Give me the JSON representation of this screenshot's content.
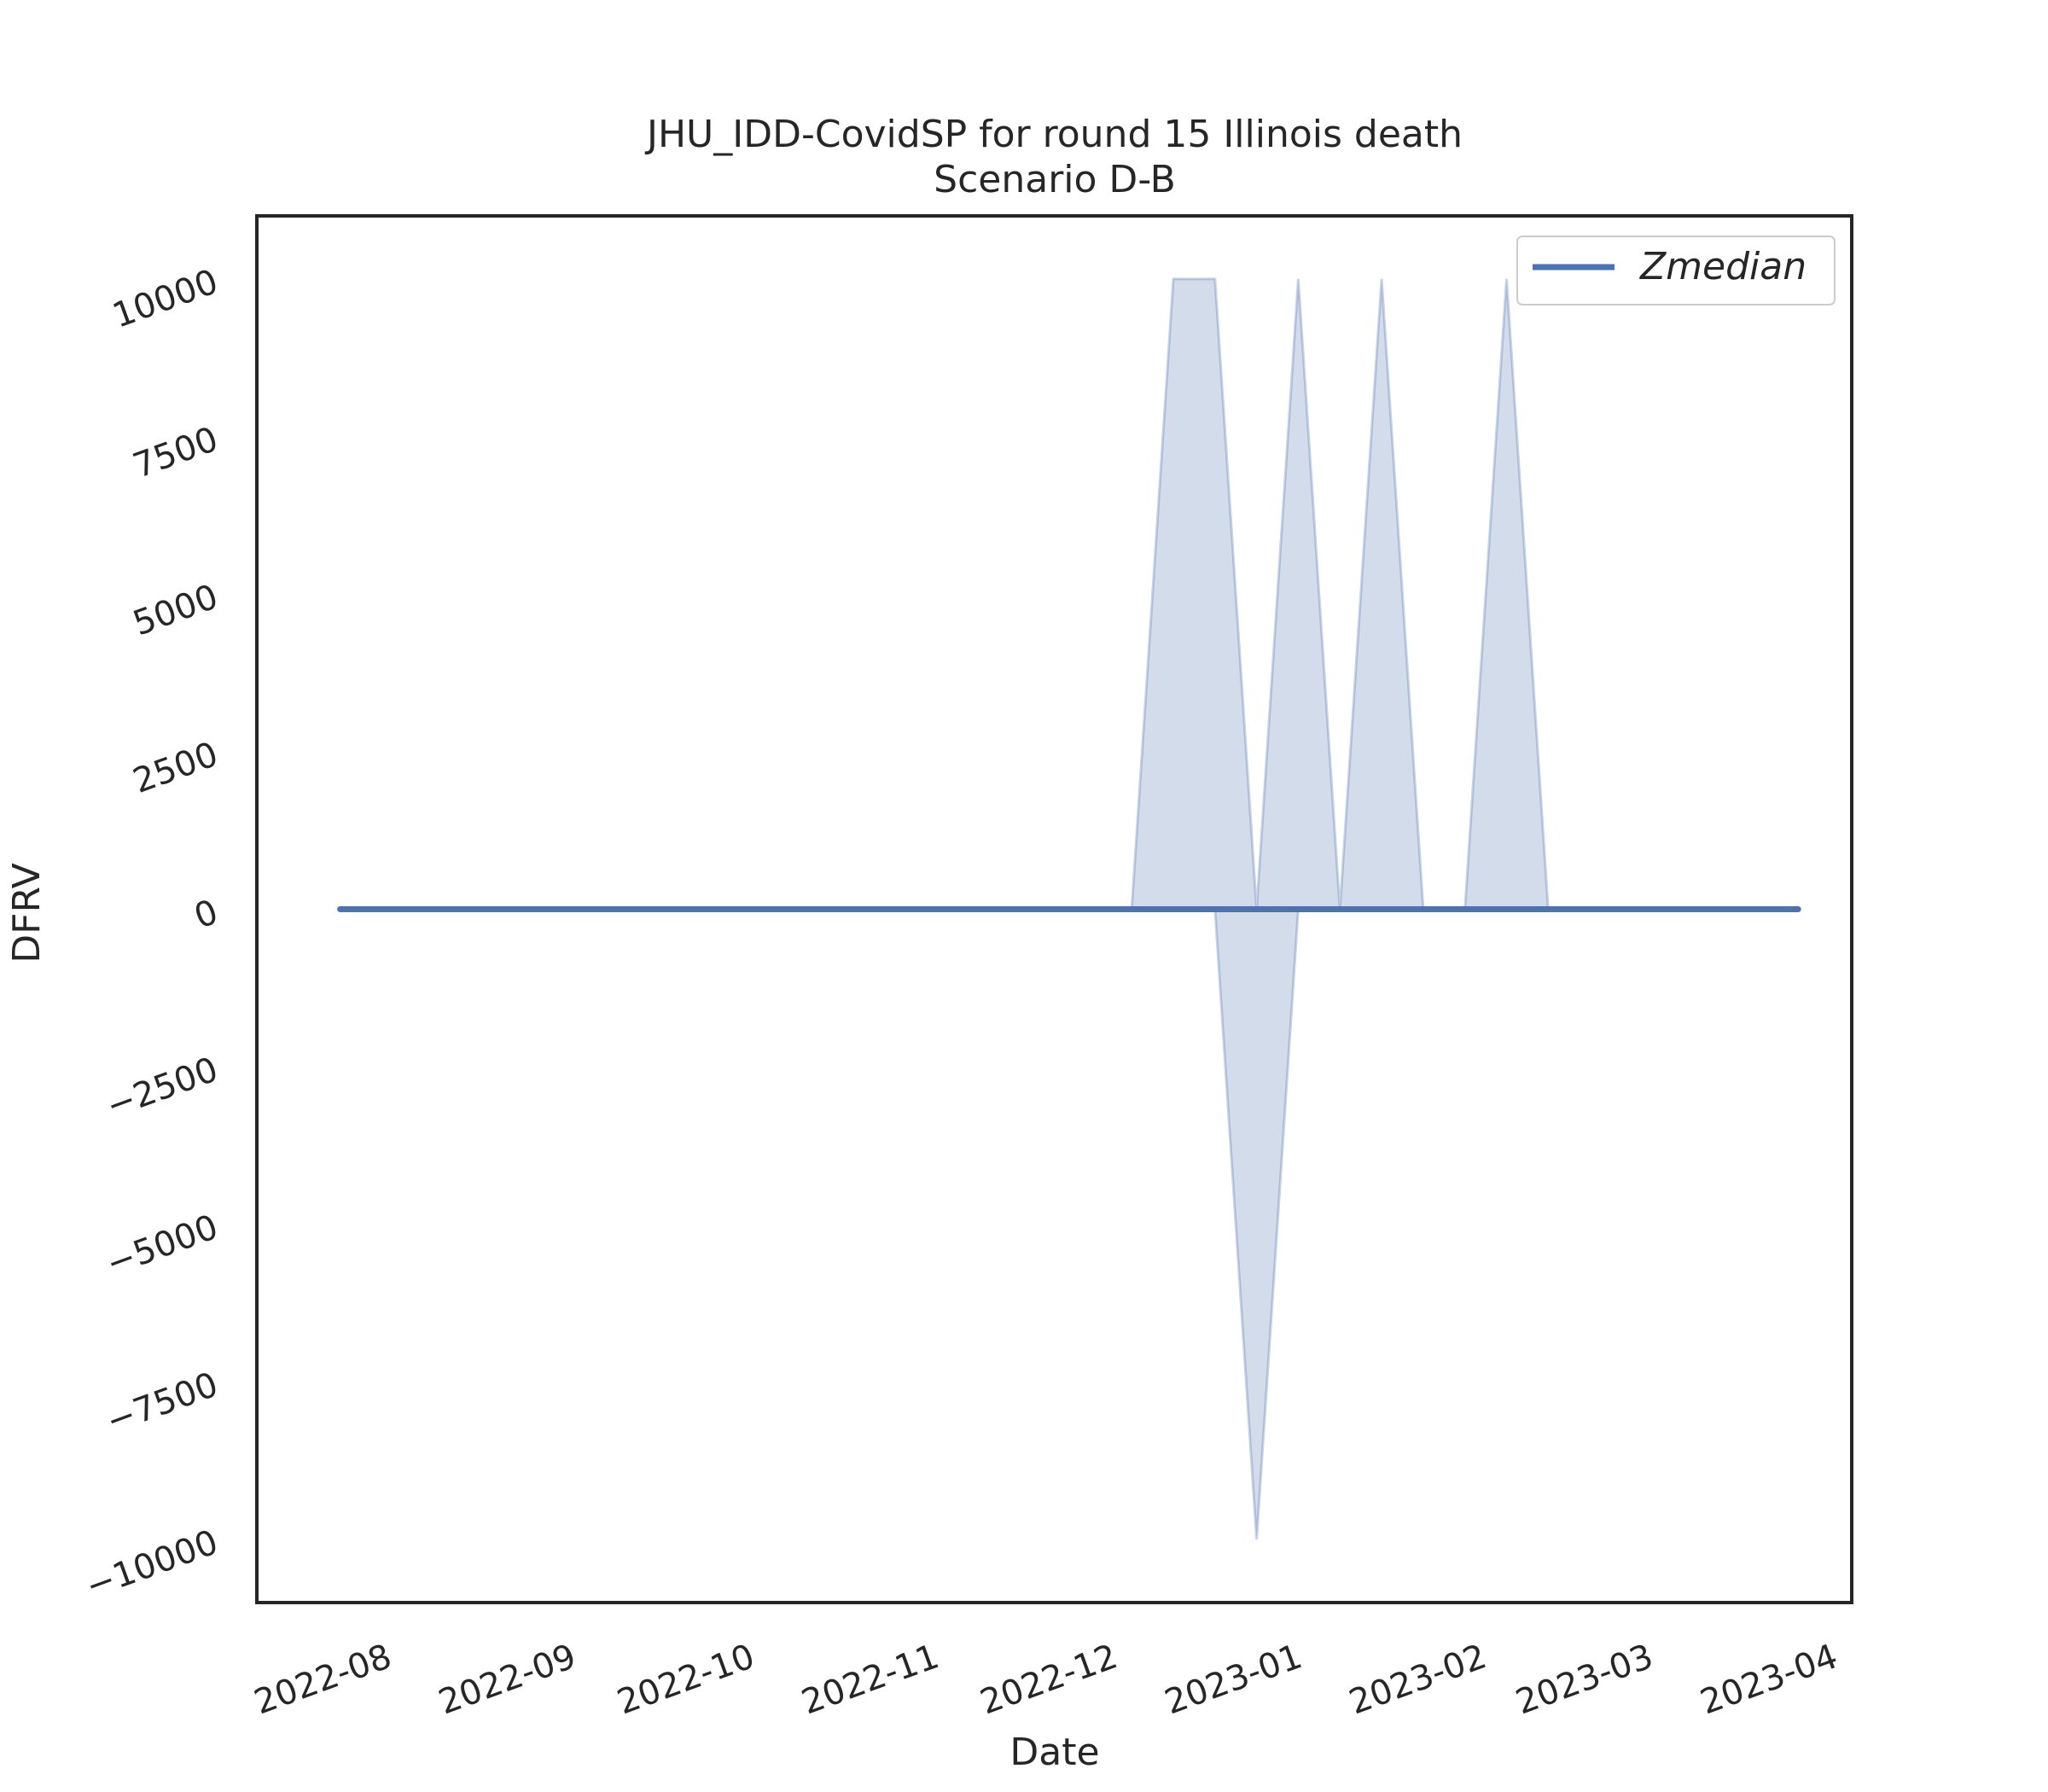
{
  "chart_data": {
    "type": "line",
    "title": "JHU_IDD-CovidSP for round 15 Illinois death",
    "subtitle": "Scenario D-B",
    "xlabel": "Date",
    "ylabel": "DFRV",
    "x_type": "date",
    "xlim": [
      "2022-07-09",
      "2023-04-03"
    ],
    "ylim": [
      -11000,
      11000
    ],
    "x_ticks": [
      "2022-08",
      "2022-09",
      "2022-10",
      "2022-11",
      "2022-12",
      "2023-01",
      "2023-02",
      "2023-03",
      "2023-04"
    ],
    "y_ticks": [
      -10000,
      -7500,
      -5000,
      -2500,
      0,
      2500,
      5000,
      7500,
      10000
    ],
    "grid": false,
    "legend_position": "top-right",
    "series": [
      {
        "name": "Zmedian",
        "color": "#4c72b0",
        "x": [
          "2022-07-23",
          "2023-03-25"
        ],
        "y": [
          0,
          0
        ]
      }
    ],
    "band": {
      "color": "#4c72b0",
      "opacity": 0.25,
      "x": [
        "2022-07-23",
        "2022-12-03",
        "2022-12-10",
        "2022-12-17",
        "2022-12-24",
        "2022-12-31",
        "2023-01-07",
        "2023-01-14",
        "2023-01-21",
        "2023-01-28",
        "2023-02-04",
        "2023-02-11",
        "2023-03-25"
      ],
      "lower": [
        0,
        0,
        0,
        0,
        -10000,
        0,
        0,
        0,
        0,
        0,
        0,
        0,
        0
      ],
      "upper": [
        0,
        0,
        10000,
        10000,
        0,
        10000,
        0,
        10000,
        0,
        0,
        10000,
        0,
        0
      ]
    }
  }
}
